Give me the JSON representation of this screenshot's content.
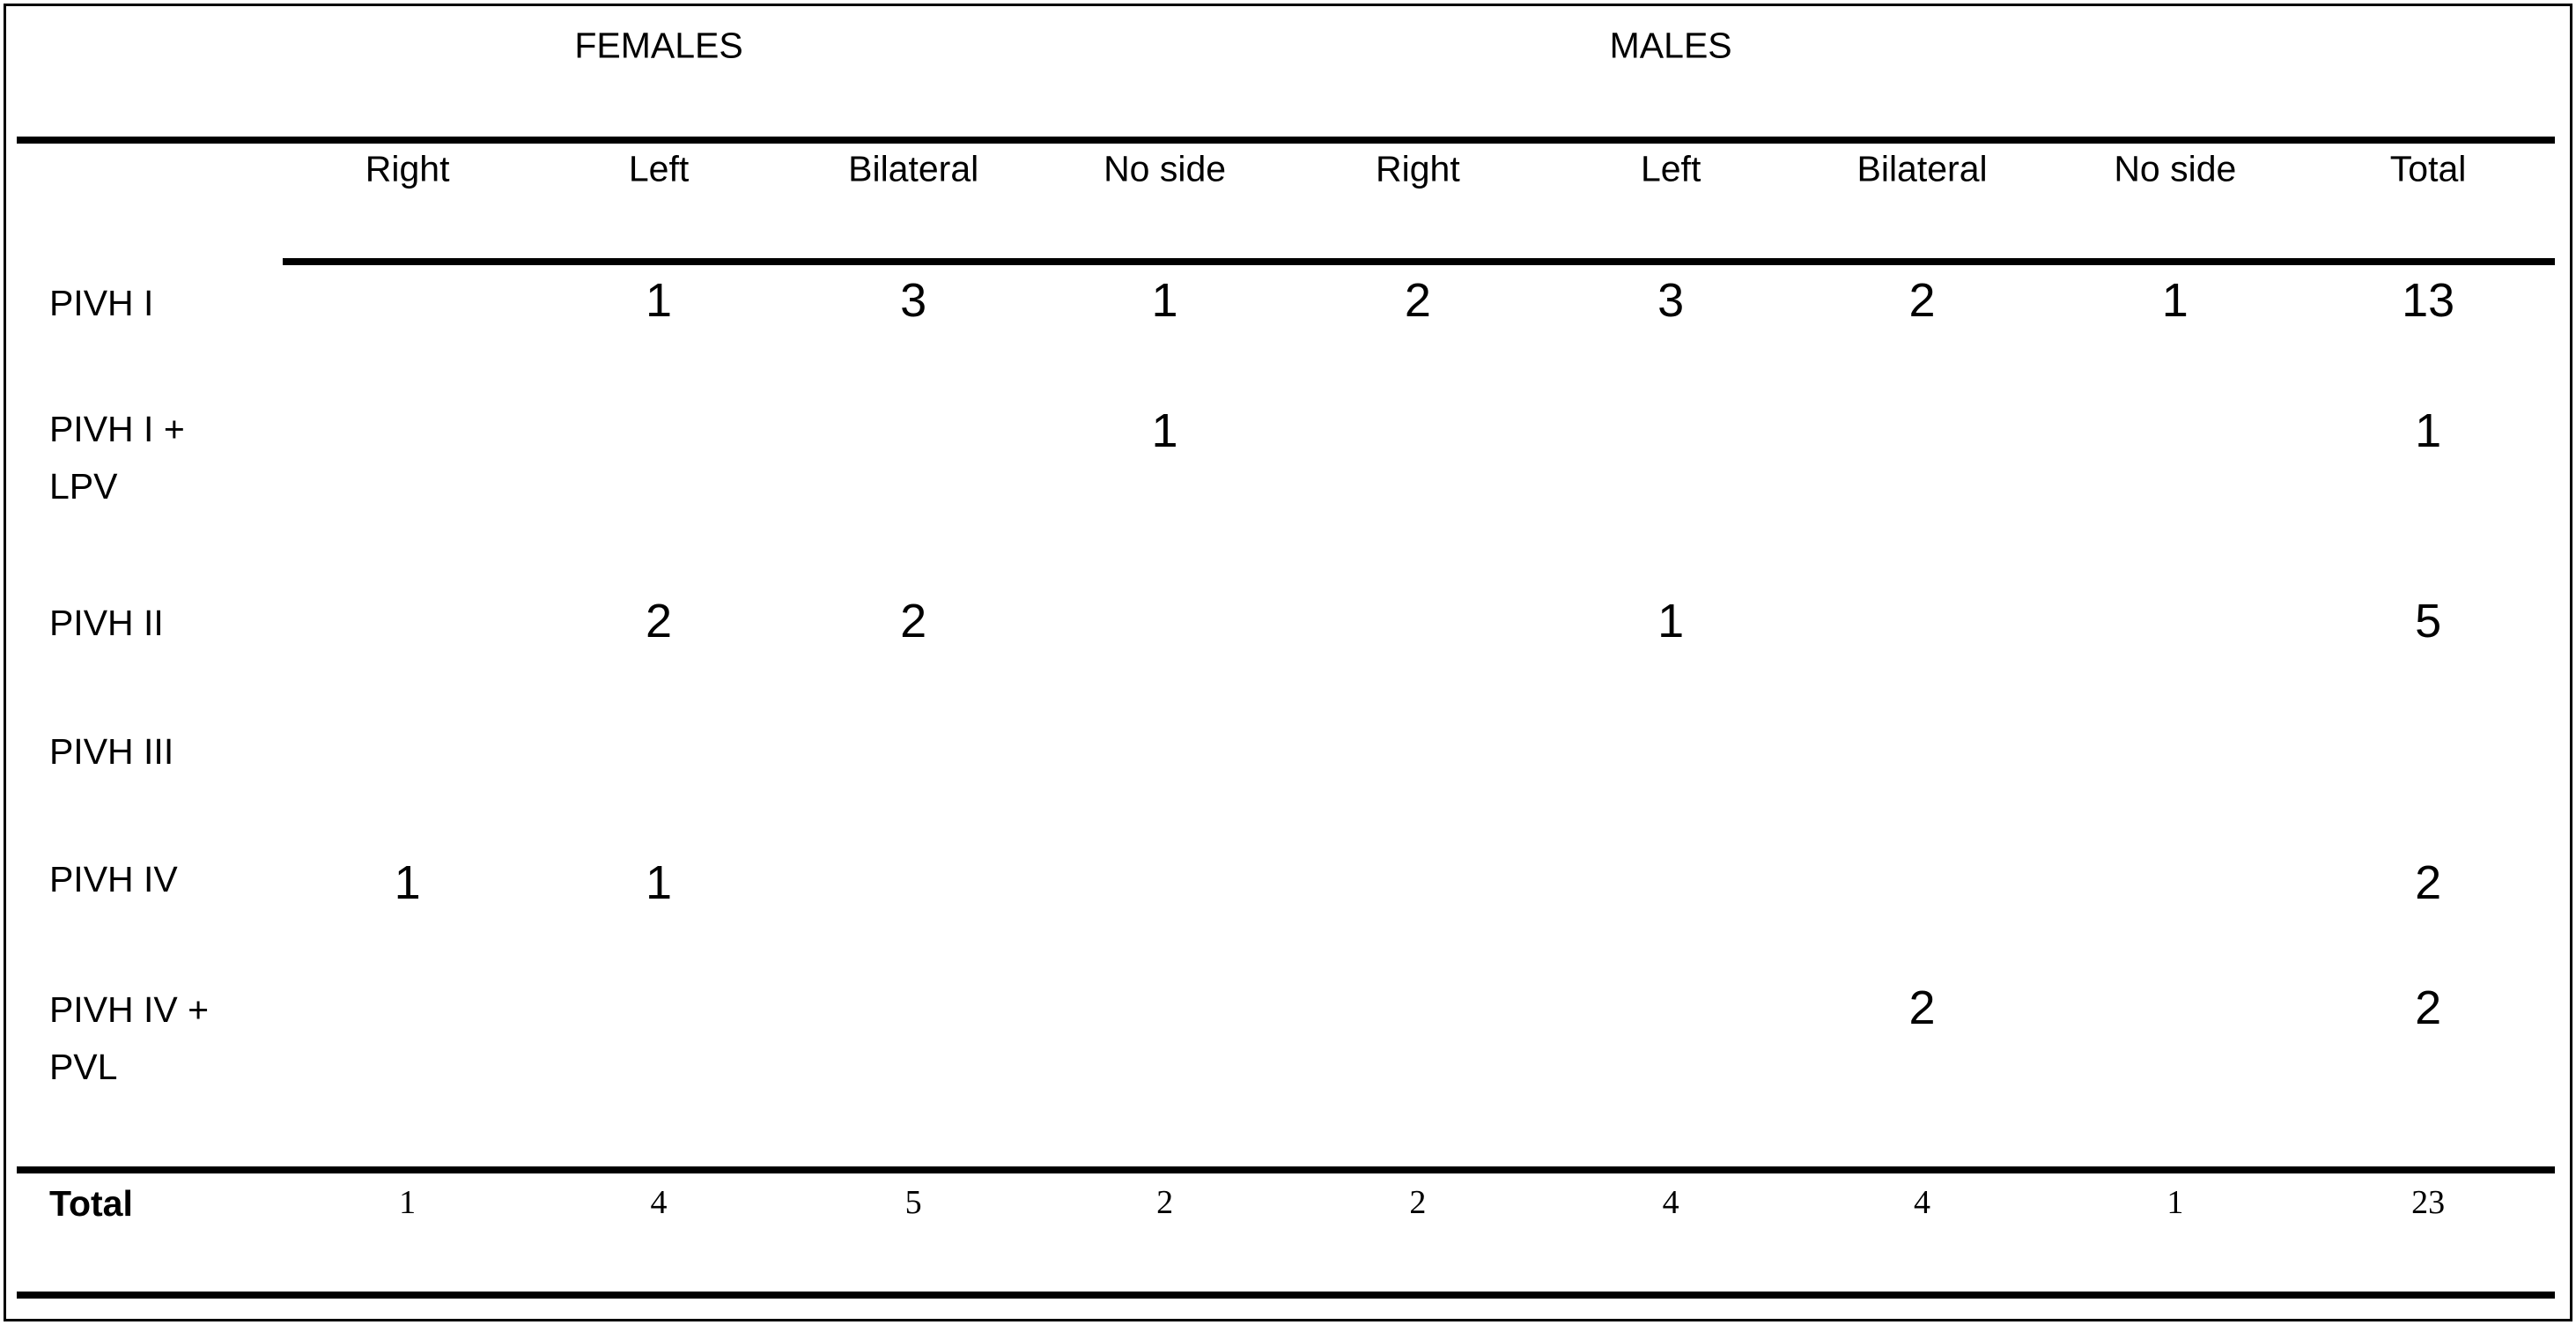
{
  "table": {
    "groups": [
      "FEMALES",
      "MALES"
    ],
    "columns": [
      "Right",
      "Left",
      "Bilateral",
      "No side",
      "Right",
      "Left",
      "Bilateral",
      "No side",
      "Total"
    ],
    "rows": [
      {
        "label": "PIVH I",
        "cells": [
          null,
          1,
          3,
          1,
          2,
          3,
          2,
          1,
          13
        ]
      },
      {
        "label": "PIVH I + LPV",
        "cells": [
          null,
          null,
          null,
          1,
          null,
          null,
          null,
          null,
          1
        ]
      },
      {
        "label": "PIVH II",
        "cells": [
          null,
          2,
          2,
          null,
          null,
          1,
          null,
          null,
          5
        ]
      },
      {
        "label": "PIVH III",
        "cells": [
          null,
          null,
          null,
          null,
          null,
          null,
          null,
          null,
          null
        ]
      },
      {
        "label": "PIVH IV",
        "cells": [
          1,
          1,
          null,
          null,
          null,
          null,
          null,
          null,
          2
        ]
      },
      {
        "label": "PIVH IV + PVL",
        "cells": [
          null,
          null,
          null,
          null,
          null,
          null,
          2,
          null,
          2
        ]
      }
    ],
    "total": {
      "label": "Total",
      "cells": [
        1,
        4,
        5,
        2,
        2,
        4,
        4,
        1,
        23
      ]
    }
  }
}
